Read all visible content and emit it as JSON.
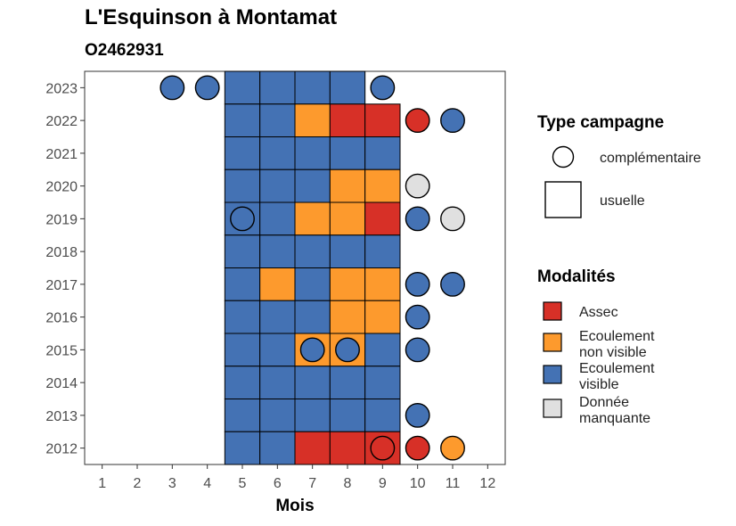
{
  "chart_data": {
    "type": "heatmap",
    "title": "L'Esquinson à Montamat",
    "subtitle": "O2462931",
    "xlabel": "Mois",
    "ylabel": "",
    "x_ticks": [
      1,
      2,
      3,
      4,
      5,
      6,
      7,
      8,
      9,
      10,
      11,
      12
    ],
    "y_ticks": [
      2023,
      2022,
      2021,
      2020,
      2019,
      2018,
      2017,
      2016,
      2015,
      2014,
      2013,
      2012
    ],
    "xlim": [
      0.5,
      12.5
    ],
    "ylim": [
      2011.5,
      2023.5
    ],
    "colors": {
      "Assec": "#d73027",
      "Ecoulement non visible": "#fd9a2d",
      "Ecoulement visible": "#4472b4",
      "Donnée manquante": "#e0e0e0"
    },
    "legend_type": {
      "title": "Type campagne",
      "items": [
        {
          "label": "complémentaire",
          "shape": "circle"
        },
        {
          "label": "usuelle",
          "shape": "square"
        }
      ]
    },
    "legend_modalites": {
      "title": "Modalités",
      "items": [
        {
          "key": "Assec",
          "label_lines": [
            "Assec"
          ]
        },
        {
          "key": "Ecoulement non visible",
          "label_lines": [
            "Ecoulement",
            "non visible"
          ]
        },
        {
          "key": "Ecoulement visible",
          "label_lines": [
            "Ecoulement",
            "visible"
          ]
        },
        {
          "key": "Donnée manquante",
          "label_lines": [
            "Donnée",
            "manquante"
          ]
        }
      ]
    },
    "usuelle": [
      {
        "year": 2023,
        "months": [
          "Ecoulement visible",
          "Ecoulement visible",
          "Ecoulement visible",
          "Ecoulement visible",
          null
        ]
      },
      {
        "year": 2022,
        "months": [
          "Ecoulement visible",
          "Ecoulement visible",
          "Ecoulement non visible",
          "Assec",
          "Assec"
        ]
      },
      {
        "year": 2021,
        "months": [
          "Ecoulement visible",
          "Ecoulement visible",
          "Ecoulement visible",
          "Ecoulement visible",
          "Ecoulement visible"
        ]
      },
      {
        "year": 2020,
        "months": [
          "Ecoulement visible",
          "Ecoulement visible",
          "Ecoulement visible",
          "Ecoulement non visible",
          "Ecoulement non visible"
        ]
      },
      {
        "year": 2019,
        "months": [
          "Ecoulement visible",
          "Ecoulement visible",
          "Ecoulement non visible",
          "Ecoulement non visible",
          "Assec"
        ]
      },
      {
        "year": 2018,
        "months": [
          "Ecoulement visible",
          "Ecoulement visible",
          "Ecoulement visible",
          "Ecoulement visible",
          "Ecoulement visible"
        ]
      },
      {
        "year": 2017,
        "months": [
          "Ecoulement visible",
          "Ecoulement non visible",
          "Ecoulement visible",
          "Ecoulement non visible",
          "Ecoulement non visible"
        ]
      },
      {
        "year": 2016,
        "months": [
          "Ecoulement visible",
          "Ecoulement visible",
          "Ecoulement visible",
          "Ecoulement non visible",
          "Ecoulement non visible"
        ]
      },
      {
        "year": 2015,
        "months": [
          "Ecoulement visible",
          "Ecoulement visible",
          "Ecoulement non visible",
          "Ecoulement non visible",
          "Ecoulement visible"
        ]
      },
      {
        "year": 2014,
        "months": [
          "Ecoulement visible",
          "Ecoulement visible",
          "Ecoulement visible",
          "Ecoulement visible",
          "Ecoulement visible"
        ]
      },
      {
        "year": 2013,
        "months": [
          "Ecoulement visible",
          "Ecoulement visible",
          "Ecoulement visible",
          "Ecoulement visible",
          "Ecoulement visible"
        ]
      },
      {
        "year": 2012,
        "months": [
          "Ecoulement visible",
          "Ecoulement visible",
          "Assec",
          "Assec",
          "Assec"
        ]
      }
    ],
    "usuelle_first_month": 5,
    "complementaire": [
      {
        "year": 2023,
        "month": 3,
        "value": "Ecoulement visible"
      },
      {
        "year": 2023,
        "month": 4,
        "value": "Ecoulement visible"
      },
      {
        "year": 2023,
        "month": 9,
        "value": "Ecoulement visible"
      },
      {
        "year": 2022,
        "month": 10,
        "value": "Assec"
      },
      {
        "year": 2022,
        "month": 11,
        "value": "Ecoulement visible"
      },
      {
        "year": 2020,
        "month": 10,
        "value": "Donnée manquante"
      },
      {
        "year": 2019,
        "month": 5,
        "value": "Ecoulement visible"
      },
      {
        "year": 2019,
        "month": 10,
        "value": "Ecoulement visible"
      },
      {
        "year": 2019,
        "month": 11,
        "value": "Donnée manquante"
      },
      {
        "year": 2017,
        "month": 10,
        "value": "Ecoulement visible"
      },
      {
        "year": 2017,
        "month": 11,
        "value": "Ecoulement visible"
      },
      {
        "year": 2016,
        "month": 10,
        "value": "Ecoulement visible"
      },
      {
        "year": 2015,
        "month": 7,
        "value": "Ecoulement visible"
      },
      {
        "year": 2015,
        "month": 8,
        "value": "Ecoulement visible"
      },
      {
        "year": 2015,
        "month": 10,
        "value": "Ecoulement visible"
      },
      {
        "year": 2013,
        "month": 10,
        "value": "Ecoulement visible"
      },
      {
        "year": 2012,
        "month": 9,
        "value": "Assec"
      },
      {
        "year": 2012,
        "month": 10,
        "value": "Assec"
      },
      {
        "year": 2012,
        "month": 11,
        "value": "Ecoulement non visible"
      }
    ]
  }
}
